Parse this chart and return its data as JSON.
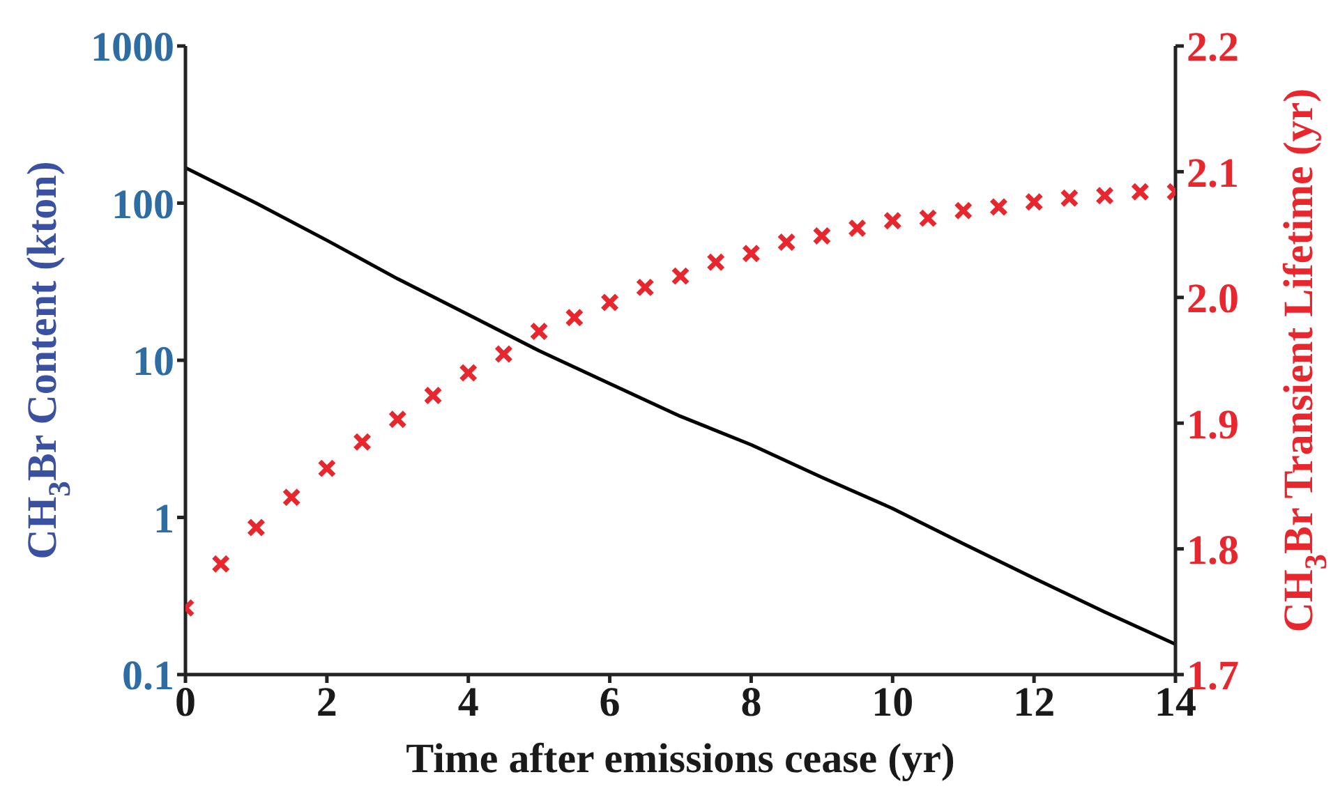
{
  "chart_data": {
    "type": "line",
    "xlabel": "Time after emissions cease (yr)",
    "ylabel": "CH$_{3}$Br Content (kton)",
    "y2label": "CH$_{3}$Br Transient Lifetime (yr)",
    "log": "y",
    "xlim": [
      0,
      14
    ],
    "xticks": [
      0,
      2,
      4,
      6,
      8,
      10,
      12,
      14
    ],
    "ylim": [
      0.1,
      1000
    ],
    "yticks": [
      0.1,
      1,
      10,
      100,
      1000
    ],
    "y2lim": [
      1.7,
      2.2
    ],
    "y2ticks": [
      1.7,
      1.8,
      1.9,
      {
        "value": 2,
        "label": "2.0"
      },
      2.1,
      2.2
    ],
    "series": [
      {
        "axis": "y",
        "color": "#000000",
        "marker": "none",
        "x": [
          0,
          1,
          2,
          3,
          4,
          5,
          6,
          7,
          8,
          9,
          10,
          11,
          12,
          13,
          14
        ],
        "values": [
          168,
          100,
          58,
          33,
          19.5,
          11.5,
          7.1,
          4.4,
          2.9,
          1.8,
          1.14,
          0.68,
          0.41,
          0.25,
          0.156
        ]
      },
      {
        "type": "scatter",
        "axis": "y2",
        "color": "#e8262d",
        "marker": "cross",
        "x": [
          0,
          0.5,
          1,
          1.5,
          2,
          2.5,
          3,
          3.5,
          4,
          4.5,
          5,
          5.5,
          6,
          6.5,
          7,
          7.5,
          8,
          8.5,
          9,
          9.5,
          10,
          10.5,
          11,
          11.5,
          12,
          12.5,
          13,
          13.5,
          14
        ],
        "values": [
          1.753,
          1.788,
          1.817,
          1.841,
          1.864,
          1.885,
          1.903,
          1.922,
          1.94,
          1.955,
          1.973,
          1.984,
          1.996,
          2.008,
          2.017,
          2.028,
          2.035,
          2.044,
          2.049,
          2.055,
          2.061,
          2.063,
          2.069,
          2.072,
          2.076,
          2.079,
          2.081,
          2.084,
          2.084
        ]
      }
    ]
  }
}
